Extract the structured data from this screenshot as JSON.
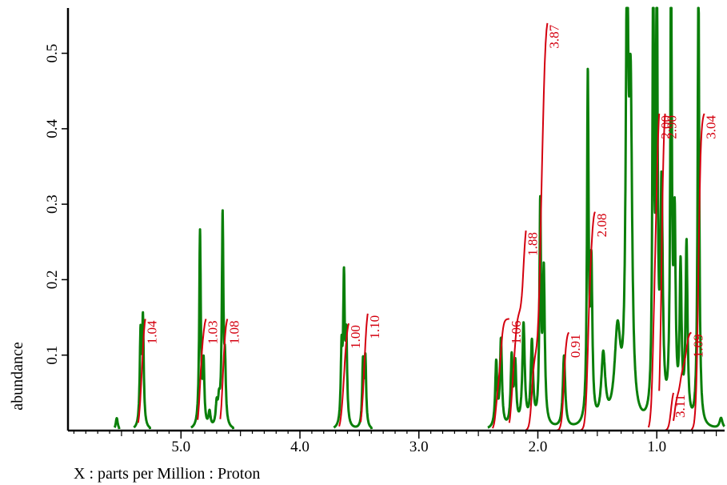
{
  "chart_data": {
    "type": "line",
    "title": "",
    "xlabel": "X : parts per Million : Proton",
    "ylabel": "abundance",
    "xlim": [
      5.95,
      0.43
    ],
    "ylim": [
      0.0,
      0.56
    ],
    "x_reversed": true,
    "grid": false,
    "x_ticks": [
      {
        "value": 5.0,
        "label": "5.0"
      },
      {
        "value": 4.0,
        "label": "4.0"
      },
      {
        "value": 3.0,
        "label": "3.0"
      },
      {
        "value": 2.0,
        "label": "2.0"
      },
      {
        "value": 1.0,
        "label": "1.0"
      }
    ],
    "y_ticks": [
      {
        "value": 0.1,
        "label": "0.1"
      },
      {
        "value": 0.2,
        "label": "0.2"
      },
      {
        "value": 0.3,
        "label": "0.3"
      },
      {
        "value": 0.4,
        "label": "0.4"
      },
      {
        "value": 0.5,
        "label": "0.5"
      }
    ],
    "colors": {
      "spectrum": "#0a7f0a",
      "integral": "#d4000f",
      "axis": "#000000"
    },
    "spectrum_peaks": [
      {
        "ppm": 5.54,
        "height": 0.016,
        "width": 0.01
      },
      {
        "ppm": 5.34,
        "height": 0.12,
        "width": 0.008
      },
      {
        "ppm": 5.32,
        "height": 0.14,
        "width": 0.008
      },
      {
        "ppm": 4.84,
        "height": 0.26,
        "width": 0.008
      },
      {
        "ppm": 4.81,
        "height": 0.08,
        "width": 0.008
      },
      {
        "ppm": 4.76,
        "height": 0.02,
        "width": 0.01
      },
      {
        "ppm": 4.7,
        "height": 0.028,
        "width": 0.01
      },
      {
        "ppm": 4.68,
        "height": 0.028,
        "width": 0.01
      },
      {
        "ppm": 4.65,
        "height": 0.278,
        "width": 0.008
      },
      {
        "ppm": 4.63,
        "height": 0.07,
        "width": 0.008
      },
      {
        "ppm": 3.65,
        "height": 0.095,
        "width": 0.008
      },
      {
        "ppm": 3.63,
        "height": 0.188,
        "width": 0.008
      },
      {
        "ppm": 3.61,
        "height": 0.11,
        "width": 0.008
      },
      {
        "ppm": 3.47,
        "height": 0.085,
        "width": 0.008
      },
      {
        "ppm": 3.45,
        "height": 0.09,
        "width": 0.008
      },
      {
        "ppm": 2.35,
        "height": 0.085,
        "width": 0.01
      },
      {
        "ppm": 2.31,
        "height": 0.115,
        "width": 0.01
      },
      {
        "ppm": 2.22,
        "height": 0.09,
        "width": 0.01
      },
      {
        "ppm": 2.19,
        "height": 0.08,
        "width": 0.01
      },
      {
        "ppm": 2.12,
        "height": 0.135,
        "width": 0.012
      },
      {
        "ppm": 2.05,
        "height": 0.11,
        "width": 0.012
      },
      {
        "ppm": 1.98,
        "height": 0.285,
        "width": 0.008
      },
      {
        "ppm": 1.95,
        "height": 0.2,
        "width": 0.01
      },
      {
        "ppm": 1.78,
        "height": 0.095,
        "width": 0.012
      },
      {
        "ppm": 1.58,
        "height": 0.455,
        "width": 0.008
      },
      {
        "ppm": 1.55,
        "height": 0.2,
        "width": 0.01
      },
      {
        "ppm": 1.45,
        "height": 0.09,
        "width": 0.02
      },
      {
        "ppm": 1.33,
        "height": 0.12,
        "width": 0.03
      },
      {
        "ppm": 1.25,
        "height": 0.6,
        "width": 0.012
      },
      {
        "ppm": 1.22,
        "height": 0.4,
        "width": 0.015
      },
      {
        "ppm": 1.03,
        "height": 0.6,
        "width": 0.008
      },
      {
        "ppm": 1.0,
        "height": 0.6,
        "width": 0.008
      },
      {
        "ppm": 0.96,
        "height": 0.3,
        "width": 0.012
      },
      {
        "ppm": 0.88,
        "height": 0.6,
        "width": 0.008
      },
      {
        "ppm": 0.85,
        "height": 0.25,
        "width": 0.01
      },
      {
        "ppm": 0.8,
        "height": 0.2,
        "width": 0.01
      },
      {
        "ppm": 0.75,
        "height": 0.235,
        "width": 0.01
      },
      {
        "ppm": 0.65,
        "height": 0.6,
        "width": 0.008
      },
      {
        "ppm": 0.46,
        "height": 0.014,
        "width": 0.015
      }
    ],
    "integrals": [
      {
        "label": "1.04",
        "from": 5.36,
        "to": 5.3,
        "top": 0.148
      },
      {
        "label": "1.03",
        "from": 4.86,
        "to": 4.79,
        "top": 0.148
      },
      {
        "label": "1.08",
        "from": 4.67,
        "to": 4.61,
        "top": 0.148
      },
      {
        "label": "1.00",
        "from": 3.67,
        "to": 3.59,
        "top": 0.142
      },
      {
        "label": "1.10",
        "from": 3.49,
        "to": 3.43,
        "top": 0.155
      },
      {
        "label": "1.06",
        "from": 2.38,
        "to": 2.24,
        "top": 0.148
      },
      {
        "label": "1.88",
        "from": 2.24,
        "to": 2.1,
        "top": 0.265
      },
      {
        "label": "3.87",
        "from": 2.1,
        "to": 1.92,
        "top": 0.54
      },
      {
        "label": "0.91",
        "from": 1.84,
        "to": 1.74,
        "top": 0.13
      },
      {
        "label": "2.08",
        "from": 1.64,
        "to": 1.52,
        "top": 0.29
      },
      {
        "label": "2.00",
        "from": 1.07,
        "to": 0.98,
        "top": 0.42
      },
      {
        "label": "2.90",
        "from": 0.98,
        "to": 0.93,
        "top": 0.42
      },
      {
        "label": "3.11",
        "from": 0.93,
        "to": 0.86,
        "top": 0.05
      },
      {
        "label": "1.09",
        "from": 0.86,
        "to": 0.71,
        "top": 0.13
      },
      {
        "label": "3.04",
        "from": 0.71,
        "to": 0.6,
        "top": 0.42
      }
    ]
  }
}
